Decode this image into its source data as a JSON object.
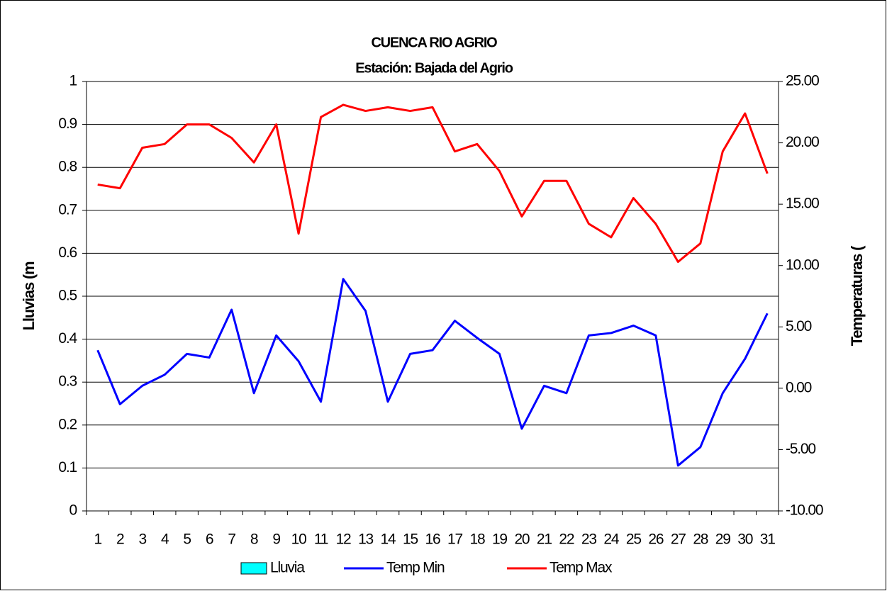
{
  "chart_data": {
    "type": "bar-line",
    "title": "CUENCA RIO AGRIO",
    "subtitle": "Estación: Bajada del Agrio",
    "y_label": "Lluvias (m",
    "y2_label": "Temperaturas (",
    "categories": [
      "1",
      "2",
      "3",
      "4",
      "5",
      "6",
      "7",
      "8",
      "9",
      "10",
      "11",
      "12",
      "13",
      "14",
      "15",
      "16",
      "17",
      "18",
      "19",
      "20",
      "21",
      "22",
      "23",
      "24",
      "25",
      "26",
      "27",
      "28",
      "29",
      "30",
      "31"
    ],
    "series": [
      {
        "name": "Lluvia",
        "type": "bar",
        "color": "#00ffff",
        "values": [
          0,
          0,
          0,
          0,
          0,
          0,
          0,
          0,
          0,
          0,
          0,
          0,
          0,
          0,
          0,
          0,
          0,
          0,
          0,
          0,
          0,
          0,
          0,
          0,
          0,
          0,
          0,
          0,
          0,
          0,
          0
        ]
      },
      {
        "name": "Temp Min",
        "type": "line",
        "axis": "y2",
        "color": "#0000ff",
        "values": [
          3.1,
          -1.3,
          0.2,
          1.1,
          2.8,
          2.5,
          6.4,
          -0.4,
          4.3,
          2.2,
          -1.1,
          8.9,
          6.3,
          -1.1,
          2.8,
          3.1,
          5.5,
          4.1,
          2.8,
          -3.3,
          0.2,
          -0.4,
          4.3,
          4.5,
          5.1,
          4.3,
          -6.3,
          -4.8,
          -0.4,
          2.4,
          6.1
        ]
      },
      {
        "name": "Temp Max",
        "type": "line",
        "axis": "y2",
        "color": "#ff0000",
        "values": [
          16.6,
          16.3,
          19.6,
          19.9,
          21.5,
          21.5,
          20.4,
          18.4,
          21.5,
          12.6,
          22.1,
          23.1,
          22.6,
          22.9,
          22.6,
          22.9,
          19.3,
          19.9,
          17.7,
          14.0,
          16.9,
          16.9,
          13.4,
          12.3,
          15.5,
          13.4,
          10.3,
          11.8,
          19.3,
          22.4,
          17.5
        ]
      }
    ],
    "ylim": [
      0,
      1
    ],
    "yticks": [
      0,
      0.1,
      0.2,
      0.3,
      0.4,
      0.5,
      0.6,
      0.7,
      0.8,
      0.9,
      1
    ],
    "y2lim": [
      -10,
      25
    ],
    "y2ticks": [
      {
        "value": -10,
        "label": "-10.00"
      },
      {
        "value": -5,
        "label": "-5.00"
      },
      {
        "value": 0,
        "label": "0.00"
      },
      {
        "value": 5,
        "label": "5.00"
      },
      {
        "value": 10,
        "label": "10.00"
      },
      {
        "value": 15,
        "label": "15.00"
      },
      {
        "value": 20,
        "label": "20.00"
      },
      {
        "value": 25,
        "label": "25.00"
      }
    ],
    "grid": true,
    "legend": "bottom"
  }
}
